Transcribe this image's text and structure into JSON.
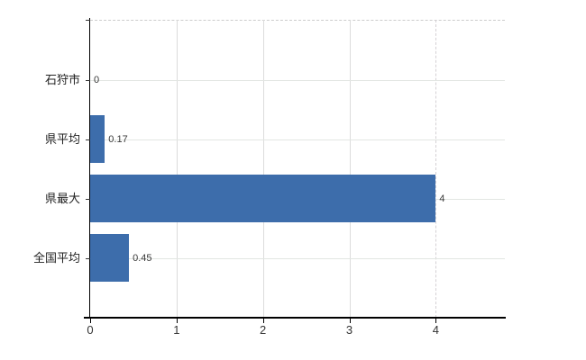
{
  "chart_data": {
    "type": "bar",
    "orientation": "horizontal",
    "title": "",
    "xlabel": "",
    "ylabel": "",
    "categories": [
      "石狩市",
      "県平均",
      "県最大",
      "全国平均"
    ],
    "values": [
      0,
      0.17,
      4,
      0.45
    ],
    "value_labels": [
      "0",
      "0.17",
      "4",
      "0.45"
    ],
    "x_ticks": [
      0,
      1,
      2,
      3,
      4
    ],
    "x_tick_labels": [
      "0",
      "1",
      "2",
      "3",
      "4"
    ],
    "xlim": [
      0,
      4.8
    ],
    "grid": true,
    "legend": "none",
    "colors": {
      "bar": "#3d6dab",
      "vertical_gridline": "#dcdcdc",
      "horizontal_gridline": "#e2e6e2",
      "plot_top_border": "#cccccc",
      "axis": "#000000",
      "text": "#333333",
      "background": "#ffffff"
    }
  }
}
